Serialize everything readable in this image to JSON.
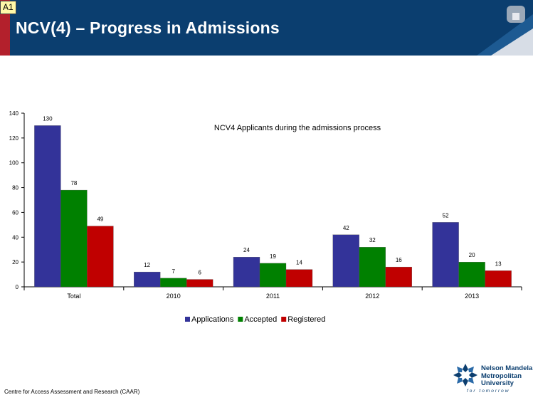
{
  "slide": {
    "tag": "A1",
    "title": "NCV(4) – Progress in Admissions"
  },
  "chart_data": {
    "type": "bar",
    "title": "NCV4 Applicants during the admissions process",
    "xlabel": "",
    "ylabel": "",
    "categories": [
      "Total",
      "2010",
      "2011",
      "2012",
      "2013"
    ],
    "series": [
      {
        "name": "Applications",
        "values": [
          130,
          12,
          24,
          42,
          52
        ],
        "color": "#333399"
      },
      {
        "name": "Accepted",
        "values": [
          78,
          7,
          19,
          32,
          20
        ],
        "color": "#008000"
      },
      {
        "name": "Registered",
        "values": [
          49,
          6,
          14,
          16,
          13
        ],
        "color": "#c00000"
      }
    ],
    "ylim": [
      0,
      140
    ],
    "yticks": [
      0,
      20,
      40,
      60,
      80,
      100,
      120,
      140
    ],
    "data_labels": true,
    "grid": false,
    "legend": "bottom"
  },
  "footer": {
    "credit": "Centre for Access Assessment and Research (CAAR)"
  },
  "logo": {
    "line1": "Nelson Mandela",
    "line2": "Metropolitan",
    "line3": "University",
    "tagline": "for tomorrow"
  }
}
